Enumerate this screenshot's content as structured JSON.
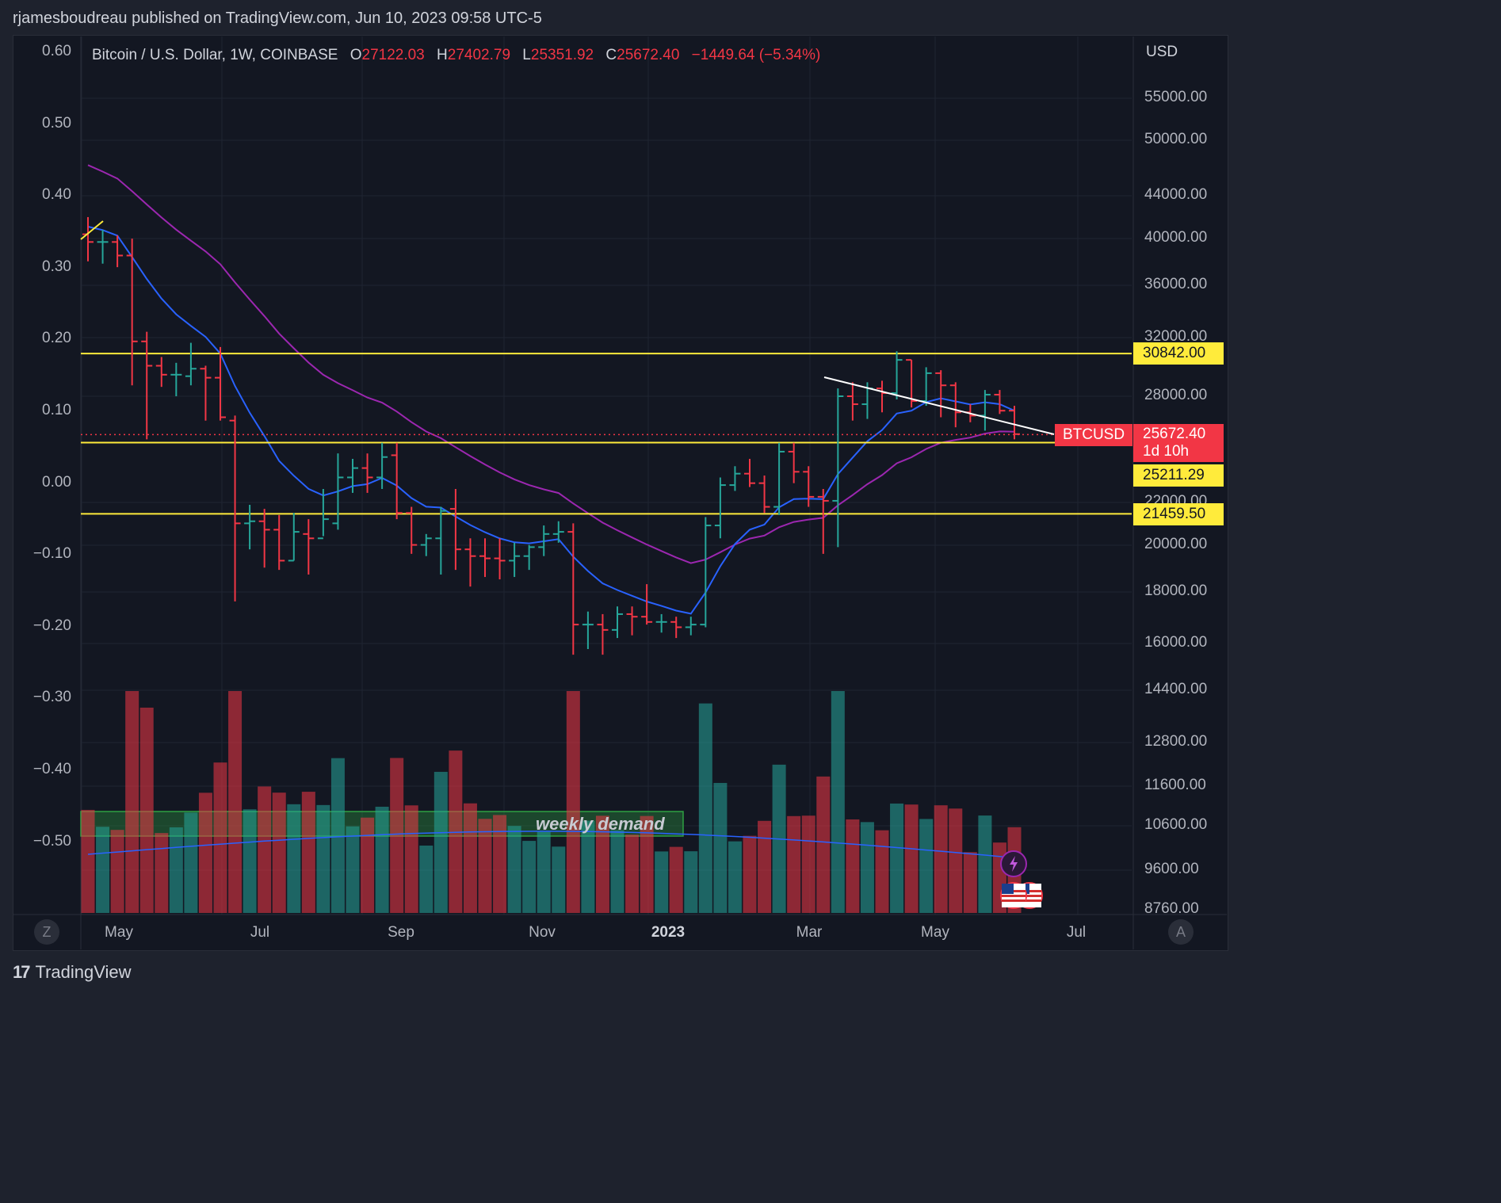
{
  "header": {
    "publish_line": "rjamesboudreau published on TradingView.com, Jun 10, 2023 09:58 UTC-5"
  },
  "legend": {
    "symbol": "Bitcoin / U.S. Dollar, 1W, COINBASE",
    "o_label": "O",
    "o_value": "27122.03",
    "h_label": "H",
    "h_value": "27402.79",
    "l_label": "L",
    "l_value": "25351.92",
    "c_label": "C",
    "c_value": "25672.40",
    "change": "−1449.64 (−5.34%)"
  },
  "right_axis": {
    "currency": "USD",
    "ticks": [
      "55000.00",
      "50000.00",
      "44000.00",
      "40000.00",
      "36000.00",
      "32000.00",
      "28000.00",
      "22000.00",
      "20000.00",
      "18000.00",
      "16000.00",
      "14400.00",
      "12800.00",
      "11600.00",
      "10600.00",
      "9600.00",
      "8760.00"
    ]
  },
  "left_axis": {
    "ticks": [
      "0.60",
      "0.50",
      "0.40",
      "0.30",
      "0.20",
      "0.10",
      "0.00",
      "−0.10",
      "−0.20",
      "−0.30",
      "−0.40",
      "−0.50"
    ]
  },
  "time_axis": {
    "labels": [
      {
        "text": "May",
        "bold": false
      },
      {
        "text": "Jul",
        "bold": false
      },
      {
        "text": "Sep",
        "bold": false
      },
      {
        "text": "Nov",
        "bold": false
      },
      {
        "text": "2023",
        "bold": true
      },
      {
        "text": "Mar",
        "bold": false
      },
      {
        "text": "May",
        "bold": false
      },
      {
        "text": "Jul",
        "bold": false
      }
    ]
  },
  "price_tags": {
    "level_top": "30842.00",
    "last_price": "25672.40",
    "countdown": "1d 10h",
    "level_mid": "25211.29",
    "level_bottom": "21459.50",
    "symbol_tag": "BTCUSD"
  },
  "annotations": {
    "demand_zone": "weekly demand"
  },
  "buttons": {
    "left_scale_toggle": "Z",
    "auto_scale_toggle": "A"
  },
  "footer": {
    "brand": "TradingView",
    "logo_mark": "17"
  },
  "colors": {
    "background": "#131722",
    "up": "#26a69a",
    "down": "#f23645",
    "ema_fast": "#2962ff",
    "ema_slow": "#9c27b0",
    "level_line": "#ffeb3b",
    "trendline": "#ffffff",
    "demand_zone": "#1b5e20"
  },
  "chart_data": {
    "type": "ohlc",
    "timeframe": "1W",
    "price_scale": "log",
    "ylim": [
      8760,
      60000
    ],
    "horizontal_levels": [
      30842.0,
      25211.29,
      21459.5
    ],
    "last_price": 25672.4,
    "series": [
      {
        "name": "BTCUSD",
        "ohlc": [
          [
            40400,
            42000,
            38000,
            39700
          ],
          [
            39700,
            40800,
            37800,
            39700
          ],
          [
            39700,
            40300,
            37500,
            38500
          ],
          [
            38500,
            40000,
            28700,
            31700
          ],
          [
            31700,
            32400,
            25400,
            30000
          ],
          [
            30000,
            30600,
            28600,
            29400
          ],
          [
            29400,
            30200,
            28000,
            29400
          ],
          [
            29300,
            31600,
            28700,
            29800
          ],
          [
            29800,
            30000,
            26500,
            29200
          ],
          [
            29200,
            31300,
            26500,
            26700
          ],
          [
            26500,
            26800,
            17600,
            21000
          ],
          [
            21000,
            21900,
            19800,
            21100
          ],
          [
            21100,
            21700,
            19000,
            20700
          ],
          [
            20700,
            21400,
            18900,
            19300
          ],
          [
            19300,
            21500,
            19300,
            20600
          ],
          [
            20500,
            21200,
            18700,
            20300
          ],
          [
            20300,
            22700,
            20400,
            21200
          ],
          [
            21000,
            24600,
            20700,
            23300
          ],
          [
            23300,
            24300,
            22500,
            23800
          ],
          [
            23800,
            24600,
            22500,
            23300
          ],
          [
            23300,
            25200,
            22700,
            24400
          ],
          [
            24500,
            25200,
            21200,
            21500
          ],
          [
            21500,
            21800,
            19600,
            20000
          ],
          [
            20000,
            20500,
            19500,
            20300
          ],
          [
            20300,
            21800,
            18700,
            21600
          ],
          [
            21700,
            22700,
            18900,
            19800
          ],
          [
            19800,
            20300,
            18200,
            19500
          ],
          [
            19500,
            20300,
            18600,
            19400
          ],
          [
            19400,
            20300,
            18500,
            19300
          ],
          [
            19300,
            20100,
            18600,
            19500
          ],
          [
            19500,
            20000,
            18900,
            19900
          ],
          [
            19900,
            20900,
            19500,
            20500
          ],
          [
            20500,
            21100,
            20100,
            20600
          ],
          [
            20600,
            21000,
            15600,
            16700
          ],
          [
            16700,
            17200,
            15800,
            16700
          ],
          [
            16700,
            17100,
            15600,
            16500
          ],
          [
            16500,
            17400,
            16200,
            17100
          ],
          [
            17100,
            17400,
            16300,
            17000
          ],
          [
            17000,
            18300,
            16700,
            16800
          ],
          [
            16800,
            17100,
            16400,
            16800
          ],
          [
            16800,
            17000,
            16200,
            16600
          ],
          [
            16600,
            17000,
            16300,
            16700
          ],
          [
            16700,
            21300,
            16600,
            20900
          ],
          [
            20900,
            23300,
            20300,
            22900
          ],
          [
            22900,
            23900,
            22600,
            23500
          ],
          [
            23500,
            24300,
            22800,
            23000
          ],
          [
            23000,
            23400,
            21500,
            21800
          ],
          [
            21800,
            25200,
            21400,
            24700
          ],
          [
            24700,
            25200,
            23000,
            23600
          ],
          [
            23600,
            23900,
            21800,
            22300
          ],
          [
            22300,
            22700,
            19600,
            22100
          ],
          [
            22100,
            28500,
            19900,
            28000
          ],
          [
            28000,
            28900,
            26500,
            27500
          ],
          [
            27500,
            28900,
            26600,
            28500
          ],
          [
            28500,
            29000,
            27000,
            28200
          ],
          [
            28200,
            31000,
            27800,
            30400
          ],
          [
            30400,
            30400,
            27300,
            27700
          ],
          [
            27700,
            29900,
            27400,
            29500
          ],
          [
            29500,
            29700,
            26700,
            28700
          ],
          [
            28700,
            28900,
            26100,
            27000
          ],
          [
            27000,
            27500,
            26400,
            26800
          ],
          [
            26800,
            28400,
            25900,
            28100
          ],
          [
            28100,
            28400,
            26900,
            27100
          ],
          [
            27100,
            27400,
            25400,
            25700
          ]
        ]
      }
    ],
    "moving_averages": [
      {
        "name": "EMA fast",
        "color": "#2962ff"
      },
      {
        "name": "EMA slow",
        "color": "#9c27b0"
      }
    ],
    "volume_colors_by_bar": [
      "down",
      "down",
      "down",
      "down",
      "up",
      "down",
      "down",
      "down"
    ]
  }
}
